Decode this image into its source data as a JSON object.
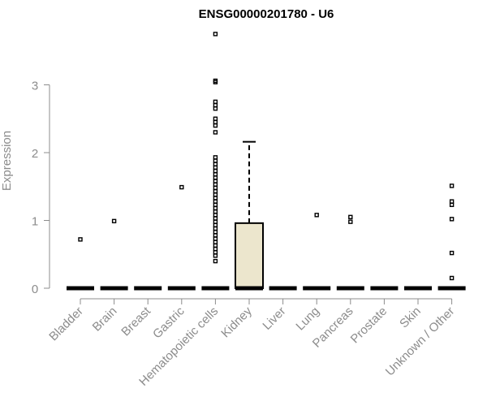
{
  "chart_data": {
    "type": "box",
    "title": "ENSG00000201780 - U6",
    "xlabel": "",
    "ylabel": "Expression",
    "ylim": [
      0,
      3.8
    ],
    "yticks": [
      0,
      1,
      2,
      3
    ],
    "grid": false,
    "categories": [
      "Bladder",
      "Brain",
      "Breast",
      "Gastric",
      "Hematopoietic cells",
      "Kidney",
      "Liver",
      "Lung",
      "Pancreas",
      "Prostate",
      "Skin",
      "Unknown / Other"
    ],
    "boxes": [
      {
        "category": "Bladder",
        "q1": 0,
        "median": 0,
        "q3": 0,
        "whisker_low": 0,
        "whisker_high": 0,
        "outliers": [
          0.72
        ]
      },
      {
        "category": "Brain",
        "q1": 0,
        "median": 0,
        "q3": 0,
        "whisker_low": 0,
        "whisker_high": 0,
        "outliers": [
          0.99
        ]
      },
      {
        "category": "Breast",
        "q1": 0,
        "median": 0,
        "q3": 0,
        "whisker_low": 0,
        "whisker_high": 0,
        "outliers": []
      },
      {
        "category": "Gastric",
        "q1": 0,
        "median": 0,
        "q3": 0,
        "whisker_low": 0,
        "whisker_high": 0,
        "outliers": [
          1.49
        ]
      },
      {
        "category": "Hematopoietic cells",
        "q1": 0,
        "median": 0,
        "q3": 0,
        "whisker_low": 0,
        "whisker_high": 0,
        "outliers": [
          3.75,
          3.06,
          3.04,
          2.75,
          2.7,
          2.65,
          2.5,
          2.45,
          2.4,
          2.3,
          1.93,
          1.88,
          1.83,
          1.78,
          1.73,
          1.68,
          1.63,
          1.58,
          1.53,
          1.48,
          1.43,
          1.38,
          1.33,
          1.28,
          1.23,
          1.18,
          1.13,
          1.08,
          1.03,
          0.98,
          0.93,
          0.88,
          0.83,
          0.78,
          0.73,
          0.68,
          0.63,
          0.58,
          0.53,
          0.48,
          0.4
        ]
      },
      {
        "category": "Kidney",
        "q1": 0,
        "median": 0,
        "q3": 0.96,
        "whisker_low": 0,
        "whisker_high": 2.16,
        "outliers": []
      },
      {
        "category": "Liver",
        "q1": 0,
        "median": 0,
        "q3": 0,
        "whisker_low": 0,
        "whisker_high": 0,
        "outliers": []
      },
      {
        "category": "Lung",
        "q1": 0,
        "median": 0,
        "q3": 0,
        "whisker_low": 0,
        "whisker_high": 0,
        "outliers": [
          1.08
        ]
      },
      {
        "category": "Pancreas",
        "q1": 0,
        "median": 0,
        "q3": 0,
        "whisker_low": 0,
        "whisker_high": 0,
        "outliers": [
          1.05,
          0.98
        ]
      },
      {
        "category": "Prostate",
        "q1": 0,
        "median": 0,
        "q3": 0,
        "whisker_low": 0,
        "whisker_high": 0,
        "outliers": []
      },
      {
        "category": "Skin",
        "q1": 0,
        "median": 0,
        "q3": 0,
        "whisker_low": 0,
        "whisker_high": 0,
        "outliers": []
      },
      {
        "category": "Unknown / Other",
        "q1": 0,
        "median": 0,
        "q3": 0,
        "whisker_low": 0,
        "whisker_high": 0,
        "outliers": [
          1.51,
          1.28,
          1.23,
          1.02,
          0.52,
          0.15
        ]
      }
    ]
  },
  "colors": {
    "box_fill": "#ece6cd",
    "box_stroke": "#000000",
    "axis": "#8c8c8c",
    "tick_label": "#8c8c8c",
    "title": "#000000",
    "outlier": "#000000"
  }
}
